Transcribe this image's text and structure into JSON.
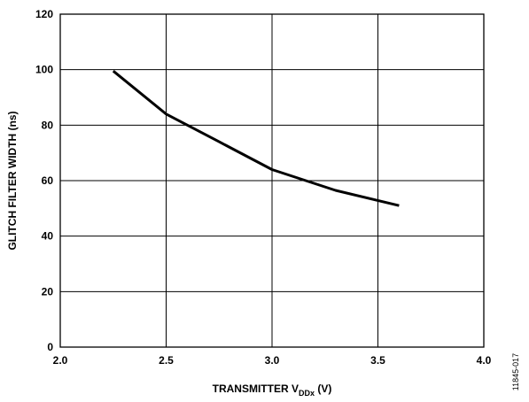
{
  "chart_data": {
    "type": "line",
    "xlabel_main": "TRANSMITTER V",
    "xlabel_sub": "DDx",
    "xlabel_unit": " (V)",
    "ylabel": "GLITCH FILTER WIDTH (ns)",
    "xlim": [
      2.0,
      4.0
    ],
    "ylim": [
      0,
      120
    ],
    "x_ticks": [
      "2.0",
      "2.5",
      "3.0",
      "3.5",
      "4.0"
    ],
    "y_ticks": [
      "0",
      "20",
      "40",
      "60",
      "80",
      "100",
      "120"
    ],
    "grid": true,
    "series": [
      {
        "x": [
          2.25,
          2.5,
          2.75,
          3.0,
          3.3,
          3.6
        ],
        "y": [
          99.5,
          84,
          74,
          64,
          56.5,
          51
        ],
        "color": "#000000"
      }
    ]
  },
  "figure_id": "11845-017"
}
